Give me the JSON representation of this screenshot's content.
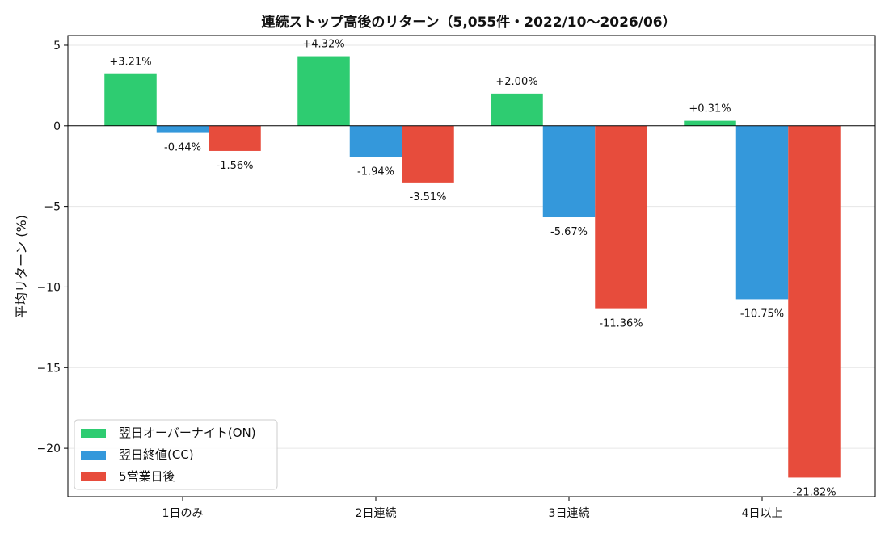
{
  "chart_data": {
    "type": "bar",
    "title": "連続ストップ高後のリターン（5,055件・2022/10〜2026/06）",
    "xlabel": "",
    "ylabel": "平均リターン (%)",
    "categories": [
      "1日のみ",
      "2日連続",
      "3日連続",
      "4日以上"
    ],
    "series": [
      {
        "name": "翌日オーバーナイト(ON)",
        "color": "#2ecc71",
        "values": [
          3.21,
          4.32,
          2.0,
          0.31
        ],
        "labels": [
          "+3.21%",
          "+4.32%",
          "+2.00%",
          "+0.31%"
        ]
      },
      {
        "name": "翌日終値(CC)",
        "color": "#3498db",
        "values": [
          -0.44,
          -1.94,
          -5.67,
          -10.75
        ],
        "labels": [
          "-0.44%",
          "-1.94%",
          "-5.67%",
          "-10.75%"
        ]
      },
      {
        "name": "5営業日後",
        "color": "#e74c3c",
        "values": [
          -1.56,
          -3.51,
          -11.36,
          -21.82
        ],
        "labels": [
          "-1.56%",
          "-3.51%",
          "-11.36%",
          "-21.82%"
        ]
      }
    ],
    "ylim": [
      -23,
      5.6
    ],
    "yticks": [
      5,
      0,
      -5,
      -10,
      -15,
      -20
    ],
    "ytick_labels": [
      "5",
      "0",
      "−5",
      "−10",
      "−15",
      "−20"
    ],
    "grid": "y",
    "legend_position": "lower-left"
  }
}
